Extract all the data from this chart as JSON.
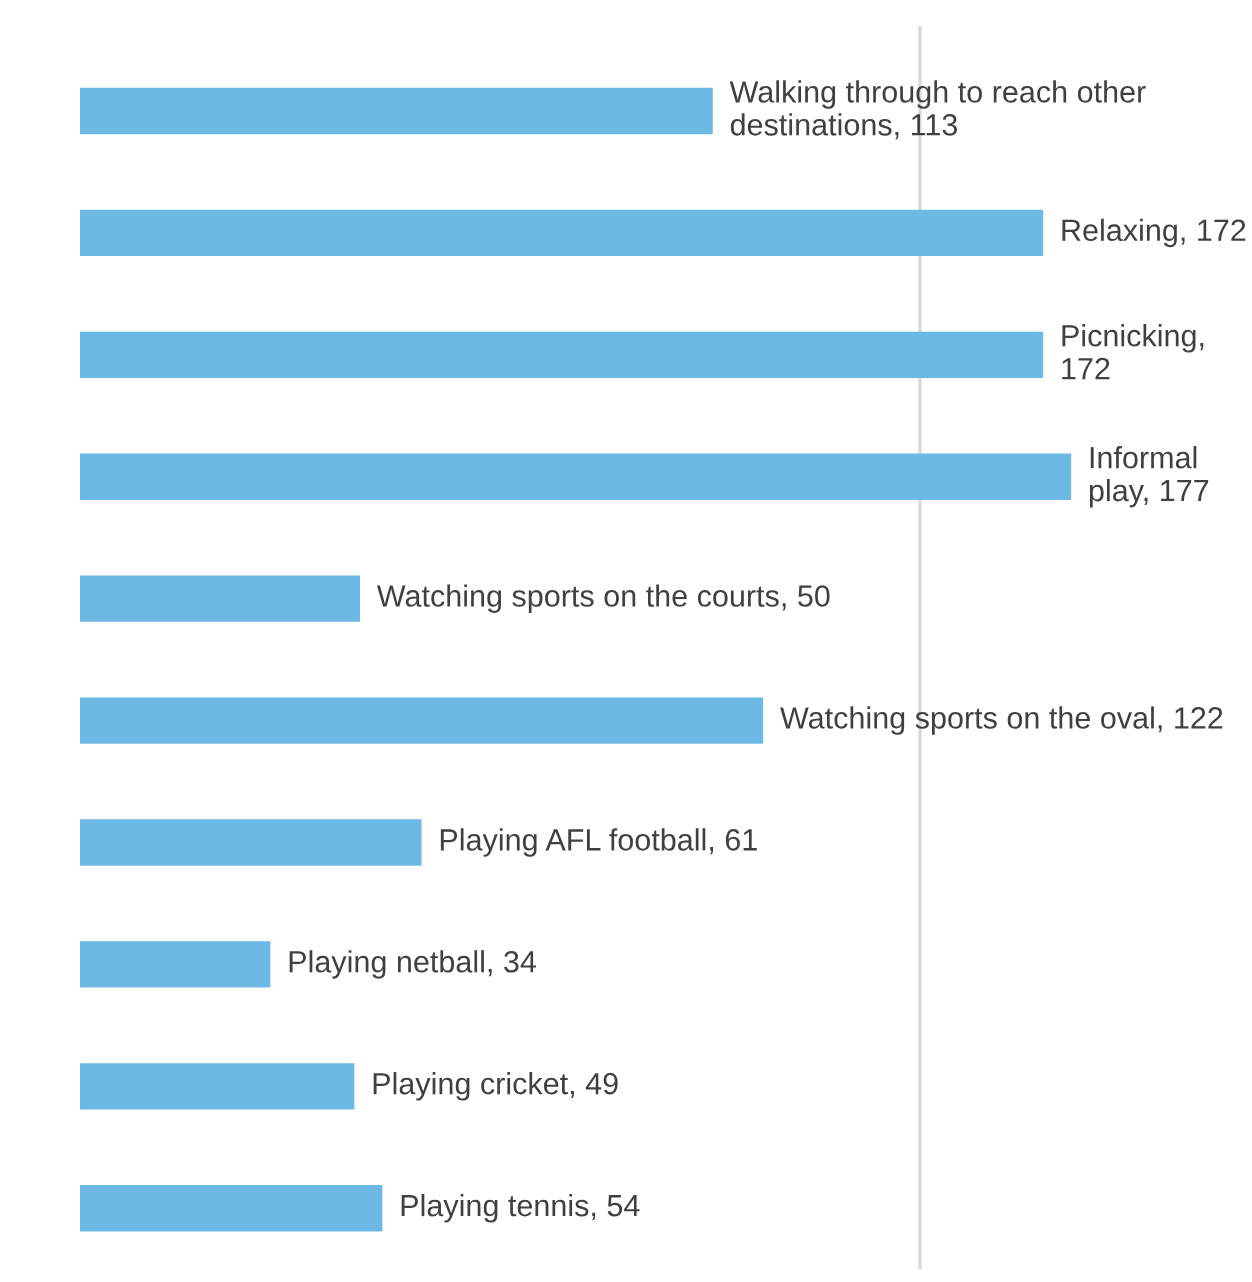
{
  "chart_data": {
    "type": "bar",
    "orientation": "horizontal",
    "categories": [
      null,
      null,
      null,
      null,
      null,
      null,
      null,
      null,
      null,
      null
    ],
    "values": [
      113,
      172,
      172,
      177,
      50,
      122,
      61,
      34,
      49,
      54
    ],
    "value_labels": [
      "Walking through to reach other destinations, 113",
      "Relaxing, 172",
      "Picnicking, 172",
      "Informal play, 177",
      "Watching sports on the courts, 50",
      "Watching sports on the oval, 122",
      "Playing AFL football, 61",
      "Playing netball, 34",
      "Playing cricket, 49",
      "Playing tennis, 54"
    ],
    "color": "#6cb9e6",
    "ref_lines": [
      {
        "axis": "x",
        "value": 150,
        "label": null,
        "color": "#d9d9d9"
      }
    ]
  }
}
